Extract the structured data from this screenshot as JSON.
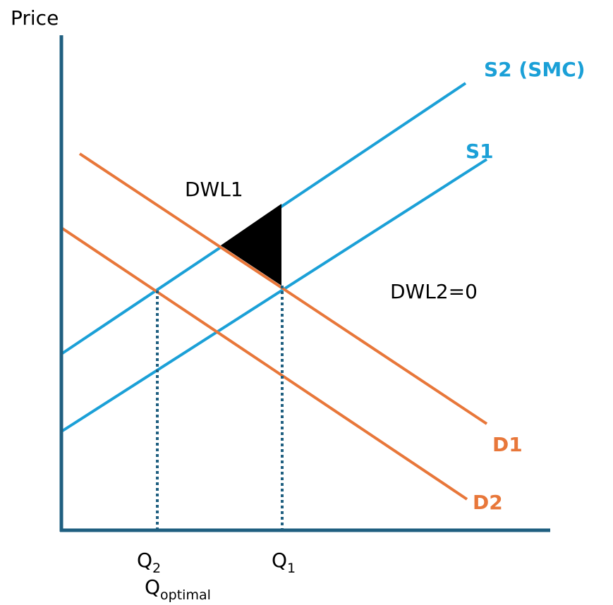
{
  "axis_labels": {
    "y": "Price"
  },
  "curves": [
    {
      "label": "S2 (SMC)"
    },
    {
      "label": "S1"
    },
    {
      "label": "D1"
    },
    {
      "label": "D2"
    }
  ],
  "areas": [
    {
      "label": "DWL1"
    },
    {
      "label": "DWL2=0"
    }
  ],
  "quantities": [
    {
      "symbol": "Q",
      "subscript": "2"
    },
    {
      "symbol": "Q",
      "subscript": "1"
    },
    {
      "symbol": "Q",
      "subscript": "optimal"
    }
  ]
}
